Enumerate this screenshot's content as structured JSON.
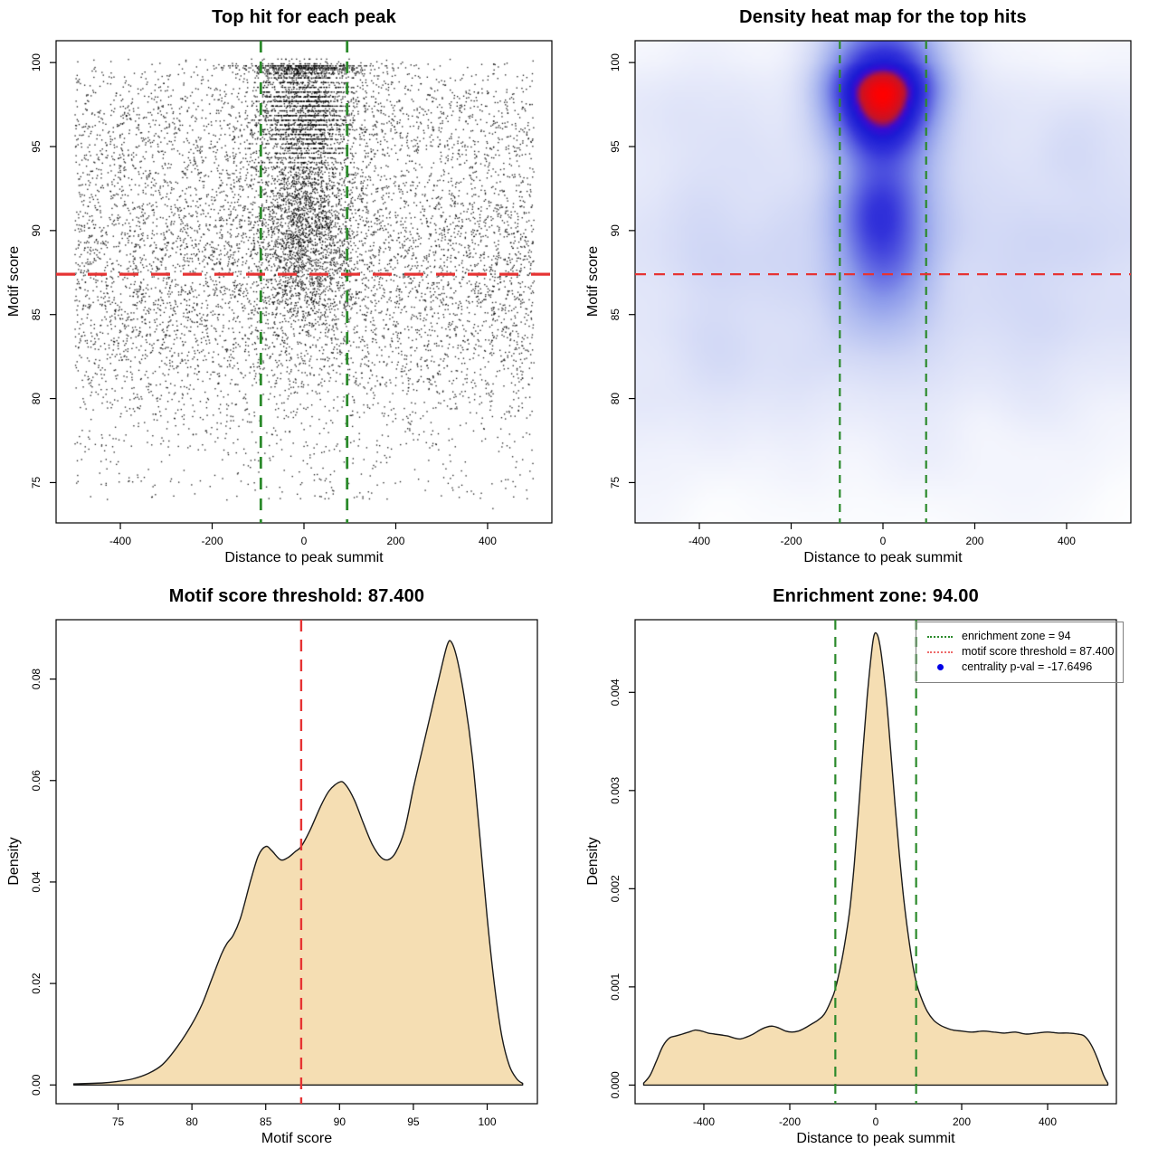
{
  "page": {
    "background": "#ffffff"
  },
  "colors": {
    "threshold_red": "#e63333",
    "zone_green": "#2b8a2b",
    "legend_red": "#ee6a6a",
    "density_fill": "#f5deb3",
    "curve_stroke": "#1a1a1a",
    "point_color": "#000000",
    "legend_dot_blue": "#0000e6",
    "axis_color": "#000000",
    "legend_border": "#808080"
  },
  "chart_data": [
    {
      "type": "scatter",
      "title": "Top hit for each peak",
      "xlabel": "Distance to peak summit",
      "ylabel": "Motif score",
      "xlim": [
        -540,
        540
      ],
      "ylim": [
        72.6,
        101.3
      ],
      "xticks": [
        {
          "v": -400,
          "label": "-400"
        },
        {
          "v": -200,
          "label": "-200"
        },
        {
          "v": 0,
          "label": "0"
        },
        {
          "v": 200,
          "label": "200"
        },
        {
          "v": 400,
          "label": "400"
        }
      ],
      "yticks": [
        {
          "v": 75,
          "label": "75"
        },
        {
          "v": 80,
          "label": "80"
        },
        {
          "v": 85,
          "label": "85"
        },
        {
          "v": 90,
          "label": "90"
        },
        {
          "v": 95,
          "label": "95"
        },
        {
          "v": 100,
          "label": "100"
        }
      ],
      "motif_score_threshold": 87.4,
      "enrichment_zone": [
        -94,
        94
      ],
      "points": {
        "seed": 42,
        "n_background": 7500,
        "n_center": 3800,
        "n_top_band": 500,
        "y_range": [
          73.4,
          100.25
        ],
        "background": {
          "x_uniform": [
            -500,
            500
          ],
          "y_mixture": [
            [
              0.34,
              84.5,
              3.6
            ],
            [
              0.3,
              90.0,
              2.8
            ],
            [
              0.18,
              96.3,
              2.0
            ],
            [
              0.18,
              "uniform",
              74,
              100
            ]
          ]
        },
        "center": {
          "x_normal": [
            0,
            55
          ],
          "y_mixture": [
            [
              0.5,
              97.2,
              1.7
            ],
            [
              0.3,
              91.5,
              2.3
            ],
            [
              0.2,
              87.8,
              2.6
            ]
          ],
          "quantize_above": 93.8,
          "quantize_step": 0.28
        },
        "top_band": {
          "x_normal": [
            0,
            75
          ],
          "y_base": 99.9,
          "y_spread": 0.35,
          "quantize_step": 0.12
        }
      }
    },
    {
      "type": "heatmap",
      "title": "Density heat map for the top hits",
      "xlabel": "Distance to peak summit",
      "ylabel": "Motif score",
      "xlim": [
        -540,
        540
      ],
      "ylim": [
        72.6,
        101.3
      ],
      "xticks": [
        {
          "v": -400,
          "label": "-400"
        },
        {
          "v": -200,
          "label": "-200"
        },
        {
          "v": 0,
          "label": "0"
        },
        {
          "v": 200,
          "label": "200"
        },
        {
          "v": 400,
          "label": "400"
        }
      ],
      "yticks": [
        {
          "v": 75,
          "label": "75"
        },
        {
          "v": 80,
          "label": "80"
        },
        {
          "v": 85,
          "label": "85"
        },
        {
          "v": 90,
          "label": "90"
        },
        {
          "v": 95,
          "label": "95"
        },
        {
          "v": 100,
          "label": "100"
        }
      ],
      "motif_score_threshold": 87.4,
      "enrichment_zone": [
        -94,
        94
      ],
      "hotspot": {
        "x": 0,
        "y": 97.2
      },
      "density": {
        "seed": 7,
        "n_background": 2600,
        "n_center": 2100,
        "n_top_band": 450,
        "grid": 128,
        "blur_radius": 5,
        "blur_passes": 3,
        "gamma": 0.5,
        "y_range": [
          73.4,
          100.4
        ],
        "background": {
          "x_uniform": [
            -520,
            520
          ],
          "y_mixture": [
            [
              0.34,
              84.5,
              3.6
            ],
            [
              0.3,
              90.0,
              2.8
            ],
            [
              0.18,
              96.3,
              2.0
            ],
            [
              0.18,
              "uniform",
              74,
              100
            ]
          ]
        },
        "center": {
          "x_normal": [
            0,
            55
          ],
          "y_mixture": [
            [
              0.5,
              97.2,
              1.6
            ],
            [
              0.3,
              91.5,
              2.3
            ],
            [
              0.2,
              88.0,
              2.6
            ]
          ]
        },
        "top_band": {
          "x_normal": [
            0,
            70
          ],
          "y_base": 99.5,
          "y_spread": 0.5
        }
      },
      "colormap": [
        [
          0,
          "#ffffff"
        ],
        [
          0.05,
          "#fbfcfe"
        ],
        [
          0.13,
          "#f0f2fc"
        ],
        [
          0.22,
          "#e2e6f9"
        ],
        [
          0.32,
          "#cfd6f5"
        ],
        [
          0.43,
          "#b0bcf0"
        ],
        [
          0.54,
          "#8b99ea"
        ],
        [
          0.64,
          "#5f66e2"
        ],
        [
          0.73,
          "#3434da"
        ],
        [
          0.81,
          "#1b1bd4"
        ],
        [
          0.87,
          "#3a0ad0"
        ],
        [
          0.92,
          "#c41428"
        ],
        [
          1,
          "#ff0000"
        ]
      ]
    },
    {
      "type": "area",
      "title": "Motif score threshold: 87.400",
      "xlabel": "Motif score",
      "ylabel": "Density",
      "xlim": [
        70.8,
        103.4
      ],
      "ylim": [
        -0.0037,
        0.0917
      ],
      "xticks": [
        {
          "v": 75,
          "label": "75"
        },
        {
          "v": 80,
          "label": "80"
        },
        {
          "v": 85,
          "label": "85"
        },
        {
          "v": 90,
          "label": "90"
        },
        {
          "v": 95,
          "label": "95"
        },
        {
          "v": 100,
          "label": "100"
        }
      ],
      "yticks": [
        {
          "v": 0,
          "label": "0.00"
        },
        {
          "v": 0.02,
          "label": "0.02"
        },
        {
          "v": 0.04,
          "label": "0.04"
        },
        {
          "v": 0.06,
          "label": "0.06"
        },
        {
          "v": 0.08,
          "label": "0.08"
        }
      ],
      "threshold_line": 87.4,
      "curve": {
        "x": [
          72,
          74,
          75,
          76,
          77,
          78,
          79,
          80,
          80.7,
          81.3,
          82,
          82.4,
          82.8,
          83.3,
          84,
          84.5,
          85,
          85.4,
          86,
          86.5,
          87,
          87.4,
          88,
          88.7,
          89.3,
          90,
          90.4,
          91,
          91.6,
          92.2,
          92.8,
          93.3,
          93.8,
          94.4,
          95,
          95.6,
          96.2,
          96.8,
          97.3,
          97.6,
          98,
          98.5,
          99,
          99.5,
          100,
          100.5,
          101,
          101.5,
          102,
          102.4
        ],
        "y": [
          0.0002,
          0.0004,
          0.0007,
          0.0012,
          0.0022,
          0.004,
          0.0075,
          0.012,
          0.016,
          0.0205,
          0.0258,
          0.028,
          0.0295,
          0.033,
          0.0405,
          0.0452,
          0.047,
          0.0462,
          0.0444,
          0.0448,
          0.046,
          0.047,
          0.0502,
          0.0548,
          0.058,
          0.0597,
          0.0592,
          0.0562,
          0.0517,
          0.0475,
          0.0449,
          0.0444,
          0.0458,
          0.0502,
          0.0585,
          0.066,
          0.0735,
          0.081,
          0.0868,
          0.0872,
          0.0835,
          0.0755,
          0.0645,
          0.049,
          0.033,
          0.0195,
          0.0095,
          0.0038,
          0.0012,
          0.0003
        ]
      }
    },
    {
      "type": "area",
      "title": "Enrichment zone: 94.00",
      "xlabel": "Distance to peak summit",
      "ylabel": "Density",
      "xlim": [
        -560,
        560
      ],
      "ylim": [
        -0.00019,
        0.00474
      ],
      "xticks": [
        {
          "v": -400,
          "label": "-400"
        },
        {
          "v": -200,
          "label": "-200"
        },
        {
          "v": 0,
          "label": "0"
        },
        {
          "v": 200,
          "label": "200"
        },
        {
          "v": 400,
          "label": "400"
        }
      ],
      "yticks": [
        {
          "v": 0,
          "label": "0.000"
        },
        {
          "v": 0.001,
          "label": "0.001"
        },
        {
          "v": 0.002,
          "label": "0.002"
        },
        {
          "v": 0.003,
          "label": "0.003"
        },
        {
          "v": 0.004,
          "label": "0.004"
        }
      ],
      "zone_lines": [
        -94,
        94
      ],
      "curve": {
        "x": [
          -540,
          -525,
          -510,
          -495,
          -480,
          -465,
          -450,
          -435,
          -420,
          -405,
          -390,
          -375,
          -360,
          -345,
          -330,
          -315,
          -300,
          -285,
          -270,
          -255,
          -240,
          -225,
          -210,
          -195,
          -180,
          -165,
          -150,
          -135,
          -120,
          -105,
          -94,
          -80,
          -70,
          -60,
          -50,
          -40,
          -30,
          -20,
          -10,
          -4,
          2,
          8,
          15,
          25,
          35,
          45,
          55,
          65,
          75,
          85,
          94,
          105,
          120,
          135,
          150,
          165,
          180,
          200,
          225,
          250,
          275,
          300,
          325,
          350,
          375,
          400,
          425,
          450,
          470,
          485,
          500,
          515,
          530,
          540
        ],
        "y": [
          2e-05,
          0.0001,
          0.00025,
          0.0004,
          0.00048,
          0.0005,
          0.00052,
          0.00054,
          0.00056,
          0.00055,
          0.00053,
          0.00052,
          0.00051,
          0.0005,
          0.00048,
          0.00047,
          0.00049,
          0.00052,
          0.00056,
          0.00059,
          0.0006,
          0.00058,
          0.00055,
          0.00054,
          0.00055,
          0.00058,
          0.00062,
          0.00066,
          0.00072,
          0.00085,
          0.00098,
          0.00125,
          0.0015,
          0.0018,
          0.00225,
          0.0028,
          0.0034,
          0.00395,
          0.0044,
          0.00458,
          0.0046,
          0.00452,
          0.00432,
          0.00392,
          0.0034,
          0.00285,
          0.00235,
          0.0019,
          0.00155,
          0.00125,
          0.00105,
          0.0009,
          0.00075,
          0.00066,
          0.00061,
          0.00058,
          0.00056,
          0.00055,
          0.00054,
          0.00055,
          0.00054,
          0.00053,
          0.00054,
          0.00052,
          0.00053,
          0.00054,
          0.00053,
          0.00053,
          0.00052,
          0.0005,
          0.00042,
          0.00028,
          0.0001,
          2e-05
        ]
      },
      "legend": {
        "items": [
          {
            "swatch": "dotted-line",
            "color": "green",
            "label": "enrichment zone = 94"
          },
          {
            "swatch": "dotted-line",
            "color": "red",
            "label": "motif score threshold = 87.400"
          },
          {
            "swatch": "dot",
            "color": "blue",
            "label": "centrality p-val = -17.6496"
          }
        ]
      }
    }
  ]
}
